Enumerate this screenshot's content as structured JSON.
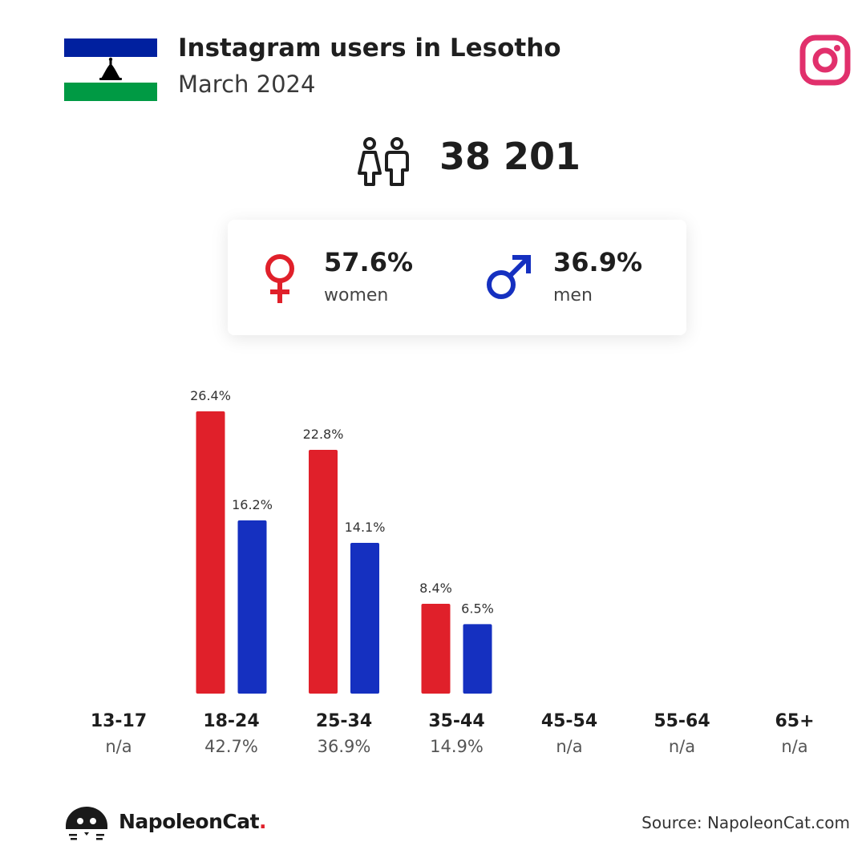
{
  "header": {
    "title": "Instagram users in Lesotho",
    "subtitle": "March 2024",
    "flag_colors": {
      "top": "#00209F",
      "middle": "#FFFFFF",
      "bottom": "#009A44",
      "emblem": "#000000"
    },
    "platform_icon": "instagram-icon",
    "platform_color": "#E1306C"
  },
  "summary": {
    "total_users": "38 201",
    "users_icon": "people-icon"
  },
  "gender": {
    "women_pct": "57.6%",
    "women_label": "women",
    "women_icon": "female-symbol-icon",
    "women_color": "#E0202A",
    "men_pct": "36.9%",
    "men_label": "men",
    "men_icon": "male-symbol-icon",
    "men_color": "#1530C0"
  },
  "chart_data": {
    "type": "bar",
    "categories": [
      "13-17",
      "18-24",
      "25-34",
      "35-44",
      "45-54",
      "55-64",
      "65+"
    ],
    "category_totals": [
      "n/a",
      "42.7%",
      "36.9%",
      "14.9%",
      "n/a",
      "n/a",
      "n/a"
    ],
    "series": [
      {
        "name": "women",
        "color": "#E0202A",
        "values": [
          null,
          26.4,
          22.8,
          8.4,
          null,
          null,
          null
        ]
      },
      {
        "name": "men",
        "color": "#1530C0",
        "values": [
          null,
          16.2,
          14.1,
          6.5,
          null,
          null,
          null
        ]
      }
    ],
    "value_suffix": "%",
    "ylim": [
      0,
      26.4
    ],
    "grid": false,
    "legend": "none"
  },
  "footer": {
    "brand_name": "NapoleonCat",
    "brand_dot": ".",
    "brand_icon": "napoleoncat-logo-icon",
    "source": "Source: NapoleonCat.com"
  }
}
